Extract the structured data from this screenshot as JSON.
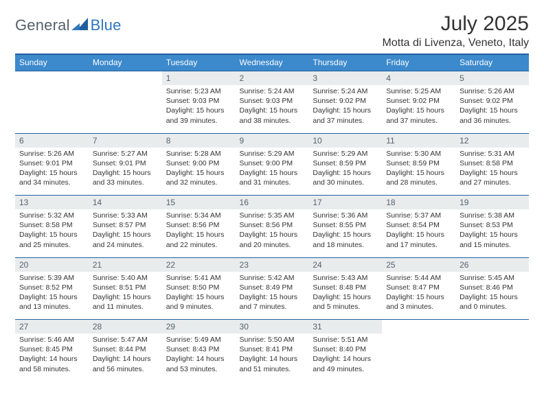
{
  "logo": {
    "part1": "General",
    "part2": "Blue"
  },
  "title": "July 2025",
  "location": "Motta di Livenza, Veneto, Italy",
  "colors": {
    "header_bg": "#3c89cc",
    "header_border": "#1f5f9e",
    "daynum_bg": "#e9eced",
    "page_bg": "#ffffff",
    "text": "#333333",
    "logo_gray": "#555f6a",
    "logo_blue": "#2f77bb"
  },
  "table": {
    "type": "calendar-table",
    "columns": [
      "Sunday",
      "Monday",
      "Tuesday",
      "Wednesday",
      "Thursday",
      "Friday",
      "Saturday"
    ],
    "weeks": [
      {
        "days": [
          null,
          null,
          {
            "n": "1",
            "sunrise": "Sunrise: 5:23 AM",
            "sunset": "Sunset: 9:03 PM",
            "daylight": "Daylight: 15 hours and 39 minutes."
          },
          {
            "n": "2",
            "sunrise": "Sunrise: 5:24 AM",
            "sunset": "Sunset: 9:03 PM",
            "daylight": "Daylight: 15 hours and 38 minutes."
          },
          {
            "n": "3",
            "sunrise": "Sunrise: 5:24 AM",
            "sunset": "Sunset: 9:02 PM",
            "daylight": "Daylight: 15 hours and 37 minutes."
          },
          {
            "n": "4",
            "sunrise": "Sunrise: 5:25 AM",
            "sunset": "Sunset: 9:02 PM",
            "daylight": "Daylight: 15 hours and 37 minutes."
          },
          {
            "n": "5",
            "sunrise": "Sunrise: 5:26 AM",
            "sunset": "Sunset: 9:02 PM",
            "daylight": "Daylight: 15 hours and 36 minutes."
          }
        ]
      },
      {
        "days": [
          {
            "n": "6",
            "sunrise": "Sunrise: 5:26 AM",
            "sunset": "Sunset: 9:01 PM",
            "daylight": "Daylight: 15 hours and 34 minutes."
          },
          {
            "n": "7",
            "sunrise": "Sunrise: 5:27 AM",
            "sunset": "Sunset: 9:01 PM",
            "daylight": "Daylight: 15 hours and 33 minutes."
          },
          {
            "n": "8",
            "sunrise": "Sunrise: 5:28 AM",
            "sunset": "Sunset: 9:00 PM",
            "daylight": "Daylight: 15 hours and 32 minutes."
          },
          {
            "n": "9",
            "sunrise": "Sunrise: 5:29 AM",
            "sunset": "Sunset: 9:00 PM",
            "daylight": "Daylight: 15 hours and 31 minutes."
          },
          {
            "n": "10",
            "sunrise": "Sunrise: 5:29 AM",
            "sunset": "Sunset: 8:59 PM",
            "daylight": "Daylight: 15 hours and 30 minutes."
          },
          {
            "n": "11",
            "sunrise": "Sunrise: 5:30 AM",
            "sunset": "Sunset: 8:59 PM",
            "daylight": "Daylight: 15 hours and 28 minutes."
          },
          {
            "n": "12",
            "sunrise": "Sunrise: 5:31 AM",
            "sunset": "Sunset: 8:58 PM",
            "daylight": "Daylight: 15 hours and 27 minutes."
          }
        ]
      },
      {
        "days": [
          {
            "n": "13",
            "sunrise": "Sunrise: 5:32 AM",
            "sunset": "Sunset: 8:58 PM",
            "daylight": "Daylight: 15 hours and 25 minutes."
          },
          {
            "n": "14",
            "sunrise": "Sunrise: 5:33 AM",
            "sunset": "Sunset: 8:57 PM",
            "daylight": "Daylight: 15 hours and 24 minutes."
          },
          {
            "n": "15",
            "sunrise": "Sunrise: 5:34 AM",
            "sunset": "Sunset: 8:56 PM",
            "daylight": "Daylight: 15 hours and 22 minutes."
          },
          {
            "n": "16",
            "sunrise": "Sunrise: 5:35 AM",
            "sunset": "Sunset: 8:56 PM",
            "daylight": "Daylight: 15 hours and 20 minutes."
          },
          {
            "n": "17",
            "sunrise": "Sunrise: 5:36 AM",
            "sunset": "Sunset: 8:55 PM",
            "daylight": "Daylight: 15 hours and 18 minutes."
          },
          {
            "n": "18",
            "sunrise": "Sunrise: 5:37 AM",
            "sunset": "Sunset: 8:54 PM",
            "daylight": "Daylight: 15 hours and 17 minutes."
          },
          {
            "n": "19",
            "sunrise": "Sunrise: 5:38 AM",
            "sunset": "Sunset: 8:53 PM",
            "daylight": "Daylight: 15 hours and 15 minutes."
          }
        ]
      },
      {
        "days": [
          {
            "n": "20",
            "sunrise": "Sunrise: 5:39 AM",
            "sunset": "Sunset: 8:52 PM",
            "daylight": "Daylight: 15 hours and 13 minutes."
          },
          {
            "n": "21",
            "sunrise": "Sunrise: 5:40 AM",
            "sunset": "Sunset: 8:51 PM",
            "daylight": "Daylight: 15 hours and 11 minutes."
          },
          {
            "n": "22",
            "sunrise": "Sunrise: 5:41 AM",
            "sunset": "Sunset: 8:50 PM",
            "daylight": "Daylight: 15 hours and 9 minutes."
          },
          {
            "n": "23",
            "sunrise": "Sunrise: 5:42 AM",
            "sunset": "Sunset: 8:49 PM",
            "daylight": "Daylight: 15 hours and 7 minutes."
          },
          {
            "n": "24",
            "sunrise": "Sunrise: 5:43 AM",
            "sunset": "Sunset: 8:48 PM",
            "daylight": "Daylight: 15 hours and 5 minutes."
          },
          {
            "n": "25",
            "sunrise": "Sunrise: 5:44 AM",
            "sunset": "Sunset: 8:47 PM",
            "daylight": "Daylight: 15 hours and 3 minutes."
          },
          {
            "n": "26",
            "sunrise": "Sunrise: 5:45 AM",
            "sunset": "Sunset: 8:46 PM",
            "daylight": "Daylight: 15 hours and 0 minutes."
          }
        ]
      },
      {
        "days": [
          {
            "n": "27",
            "sunrise": "Sunrise: 5:46 AM",
            "sunset": "Sunset: 8:45 PM",
            "daylight": "Daylight: 14 hours and 58 minutes."
          },
          {
            "n": "28",
            "sunrise": "Sunrise: 5:47 AM",
            "sunset": "Sunset: 8:44 PM",
            "daylight": "Daylight: 14 hours and 56 minutes."
          },
          {
            "n": "29",
            "sunrise": "Sunrise: 5:49 AM",
            "sunset": "Sunset: 8:43 PM",
            "daylight": "Daylight: 14 hours and 53 minutes."
          },
          {
            "n": "30",
            "sunrise": "Sunrise: 5:50 AM",
            "sunset": "Sunset: 8:41 PM",
            "daylight": "Daylight: 14 hours and 51 minutes."
          },
          {
            "n": "31",
            "sunrise": "Sunrise: 5:51 AM",
            "sunset": "Sunset: 8:40 PM",
            "daylight": "Daylight: 14 hours and 49 minutes."
          },
          null,
          null
        ]
      }
    ]
  }
}
